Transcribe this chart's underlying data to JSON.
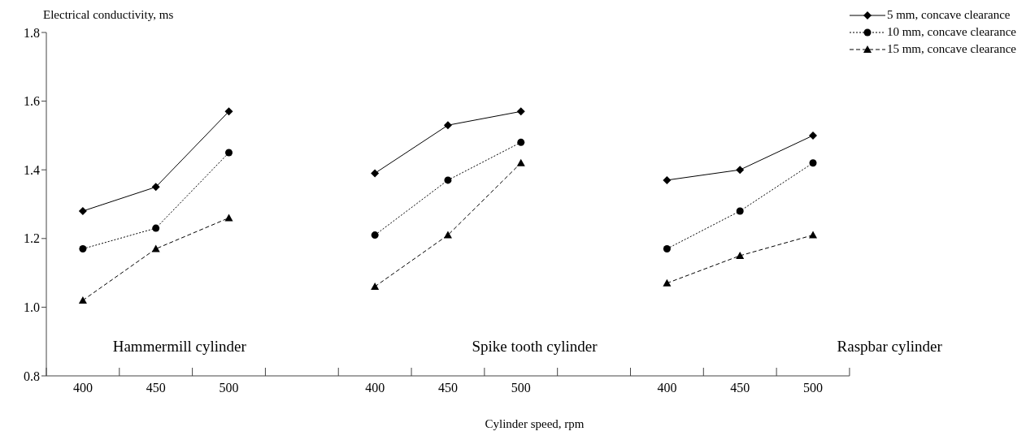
{
  "chart_data": {
    "type": "line",
    "xlabel": "Cylinder speed, rpm",
    "ylabel": "Electrical conductivity, ms",
    "categories": [
      "400",
      "450",
      "500",
      null,
      "400",
      "450",
      "500",
      null,
      "400",
      "450",
      "500"
    ],
    "ylim": [
      0.8,
      1.8
    ],
    "yticks": [
      {
        "value": 0.8,
        "label": "0.8"
      },
      {
        "value": 1.0,
        "label": "1.0"
      },
      {
        "value": 1.2,
        "label": "1.2"
      },
      {
        "value": 1.4,
        "label": "1.4"
      },
      {
        "value": 1.6,
        "label": "1.6"
      },
      {
        "value": 1.8,
        "label": "1.8"
      }
    ],
    "grid": false,
    "legend": "top right",
    "annotations": [
      "Hammermill cylinder",
      "Spike tooth cylinder",
      "Raspbar cylinder"
    ],
    "series": [
      {
        "name": "5 mm, concave clearance",
        "color": "#000000",
        "marker": "diamond",
        "line_style": "solid",
        "values": [
          1.28,
          1.35,
          1.57,
          null,
          1.39,
          1.53,
          1.57,
          null,
          1.37,
          1.4,
          1.5
        ]
      },
      {
        "name": "10 mm, concave clearance",
        "color": "#000000",
        "marker": "circle",
        "line_style": "dotted",
        "values": [
          1.17,
          1.23,
          1.45,
          null,
          1.21,
          1.37,
          1.48,
          null,
          1.17,
          1.28,
          1.42
        ]
      },
      {
        "name": "15 mm, concave clearance",
        "color": "#000000",
        "marker": "triangle",
        "line_style": "dashed",
        "values": [
          1.02,
          1.17,
          1.26,
          null,
          1.06,
          1.21,
          1.42,
          null,
          1.07,
          1.15,
          1.21
        ]
      }
    ]
  }
}
